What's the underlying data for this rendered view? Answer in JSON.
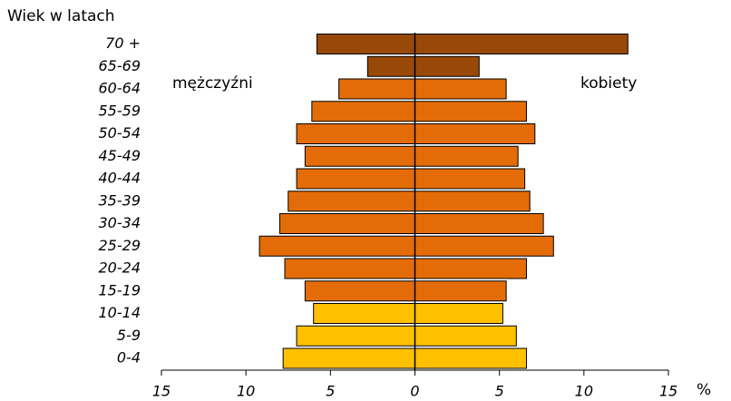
{
  "chart_data": {
    "type": "pyramid",
    "y_label": "Wiek w latach",
    "x_label": "%",
    "categories": [
      "0-4",
      "5-9",
      "10-14",
      "15-19",
      "20-24",
      "25-29",
      "30-34",
      "35-39",
      "40-44",
      "45-49",
      "50-54",
      "55-59",
      "60-64",
      "65-69",
      "70 +"
    ],
    "colors": [
      "#ffc000",
      "#ffc000",
      "#ffc000",
      "#e36c09",
      "#e36c09",
      "#e36c09",
      "#e36c09",
      "#e36c09",
      "#e36c09",
      "#e36c09",
      "#e36c09",
      "#e36c09",
      "#e36c09",
      "#984807",
      "#984807"
    ],
    "series": [
      {
        "name": "mężczyźni",
        "values": [
          -7.8,
          -7.0,
          -6.0,
          -6.5,
          -7.7,
          -9.2,
          -8.0,
          -7.5,
          -7.0,
          -6.5,
          -7.0,
          -6.1,
          -4.5,
          -2.8,
          -5.8
        ]
      },
      {
        "name": "kobiety",
        "values": [
          6.6,
          6.0,
          5.2,
          5.4,
          6.6,
          8.2,
          7.6,
          6.8,
          6.5,
          6.1,
          7.1,
          6.6,
          5.4,
          3.8,
          12.6
        ]
      }
    ],
    "xlim": [
      -15,
      15
    ],
    "xticks": [
      {
        "value": -15,
        "label": "15"
      },
      {
        "value": -10,
        "label": "10"
      },
      {
        "value": -5,
        "label": "5"
      },
      0,
      5,
      10,
      15
    ]
  }
}
